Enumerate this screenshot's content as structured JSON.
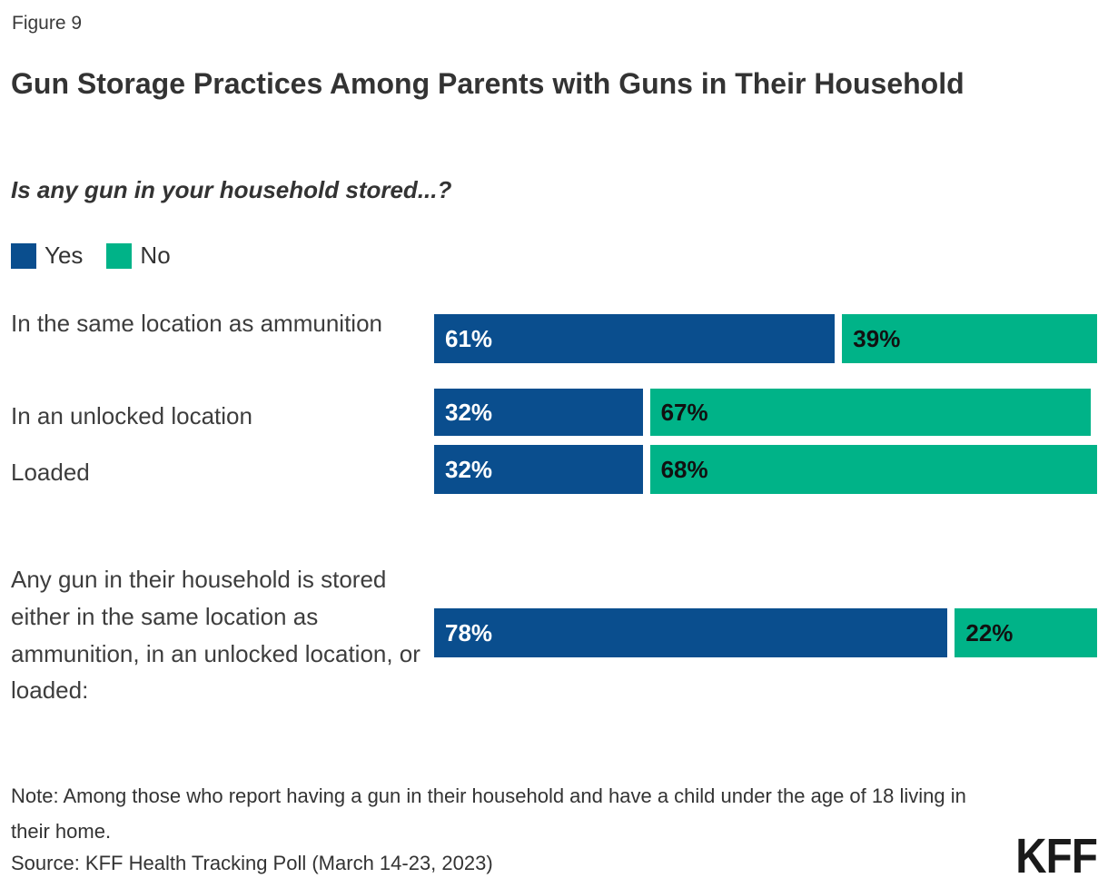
{
  "figure_label": "Figure 9",
  "title": "Gun Storage Practices Among Parents with Guns in Their Household",
  "subtitle": "Is any gun in your household stored...?",
  "legend": {
    "items": [
      {
        "label": "Yes",
        "color": "#0a4e8e"
      },
      {
        "label": "No",
        "color": "#00b388"
      }
    ]
  },
  "chart_data": {
    "type": "bar",
    "orientation": "horizontal",
    "stacked": true,
    "unit": "percent",
    "value_suffix": "%",
    "categories": [
      "In the same location as ammunition",
      "In an unlocked location",
      "Loaded",
      "Any gun in their household is stored either in the same location as ammunition, in an unlocked location, or loaded:"
    ],
    "series": [
      {
        "name": "Yes",
        "color": "#0a4e8e",
        "text_color": "#ffffff",
        "values": [
          61,
          32,
          32,
          78
        ]
      },
      {
        "name": "No",
        "color": "#00b388",
        "text_color": "#111111",
        "values": [
          39,
          67,
          68,
          22
        ]
      }
    ],
    "xlim": [
      0,
      100
    ],
    "grid": false,
    "legend_position": "top-left"
  },
  "note": "Note: Among those who report having a gun in their household and have a child under the age of 18 living in their home.",
  "source": "Source: KFF Health Tracking Poll (March 14-23, 2023)",
  "logo_text": "KFF",
  "colors": {
    "yes": "#0a4e8e",
    "no": "#00b388",
    "text": "#333333"
  }
}
